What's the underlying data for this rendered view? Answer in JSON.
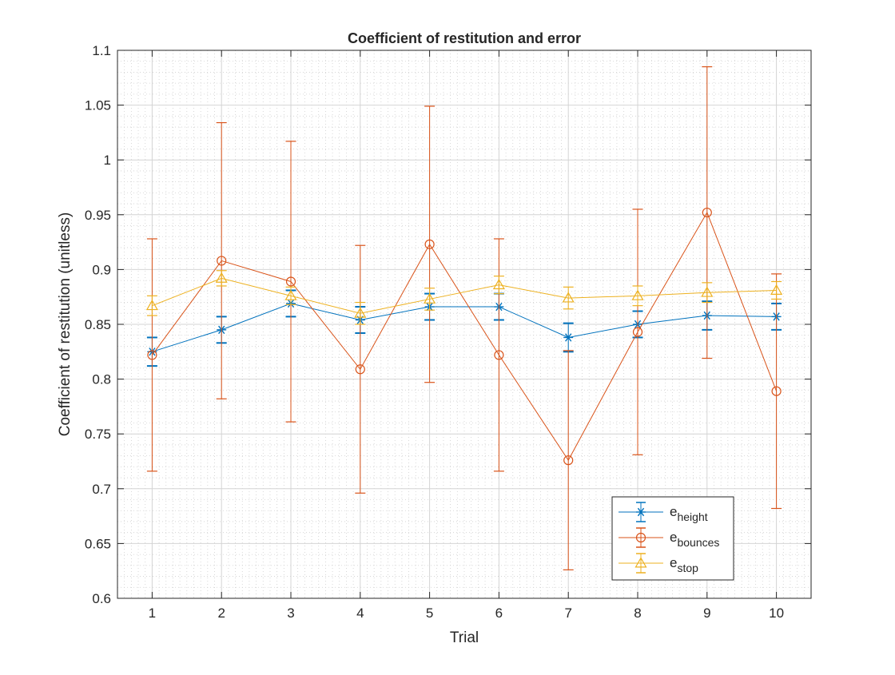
{
  "chart_data": {
    "type": "line",
    "title": "Coefficient of restitution and error",
    "xlabel": "Trial",
    "ylabel": "Coefficient of restitution (unitless)",
    "x": [
      1,
      2,
      3,
      4,
      5,
      6,
      7,
      8,
      9,
      10
    ],
    "xlim": [
      0.5,
      10.5
    ],
    "ylim": [
      0.6,
      1.1
    ],
    "xticks": [
      "1",
      "2",
      "3",
      "4",
      "5",
      "6",
      "7",
      "8",
      "9",
      "10"
    ],
    "yticks": [
      "0.6",
      "0.65",
      "0.7",
      "0.75",
      "0.8",
      "0.85",
      "0.9",
      "0.95",
      "1",
      "1.05",
      "1.1"
    ],
    "grid": true,
    "minor_grid": true,
    "legend_position": "bottom-right",
    "series": [
      {
        "name_base": "e",
        "name_sub": "height",
        "marker": "asterisk",
        "color": "#0072BD",
        "values": [
          0.825,
          0.845,
          0.869,
          0.854,
          0.866,
          0.866,
          0.838,
          0.85,
          0.858,
          0.857
        ],
        "errors": [
          0.013,
          0.012,
          0.012,
          0.012,
          0.012,
          0.012,
          0.013,
          0.012,
          0.013,
          0.012
        ]
      },
      {
        "name_base": "e",
        "name_sub": "bounces",
        "marker": "circle",
        "color": "#D95319",
        "values": [
          0.822,
          0.908,
          0.889,
          0.809,
          0.923,
          0.822,
          0.726,
          0.843,
          0.952,
          0.789
        ],
        "errors": [
          0.106,
          0.126,
          0.128,
          0.113,
          0.126,
          0.106,
          0.1,
          0.112,
          0.133,
          0.107
        ]
      },
      {
        "name_base": "e",
        "name_sub": "stop",
        "marker": "triangle",
        "color": "#EDB120",
        "values": [
          0.867,
          0.892,
          0.876,
          0.86,
          0.873,
          0.886,
          0.874,
          0.876,
          0.879,
          0.881
        ],
        "errors": [
          0.009,
          0.007,
          0.008,
          0.01,
          0.01,
          0.008,
          0.01,
          0.009,
          0.009,
          0.008
        ]
      }
    ]
  }
}
